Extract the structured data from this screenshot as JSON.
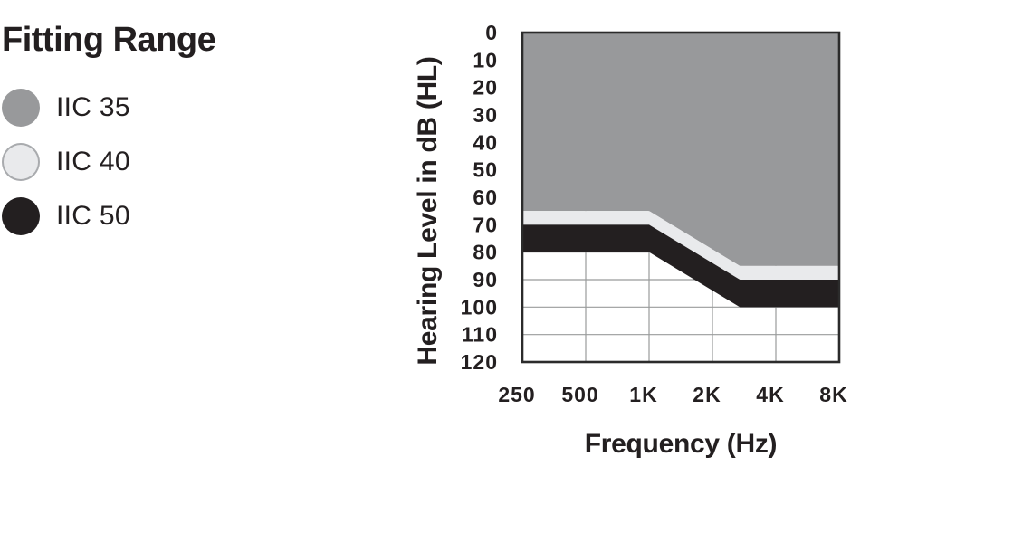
{
  "legend": {
    "title": "Fitting Range",
    "items": [
      {
        "label": "IIC 35",
        "swatch_color": "#98999b",
        "swatch_border": null
      },
      {
        "label": "IIC 40",
        "swatch_color": "#e9eaec",
        "swatch_border": "#a9abae"
      },
      {
        "label": "IIC 50",
        "swatch_color": "#231f20",
        "swatch_border": null
      }
    ]
  },
  "chart_data": {
    "type": "area",
    "title": "Fitting Range",
    "xlabel": "Frequency (Hz)",
    "ylabel": "Hearing Level in dB (HL)",
    "x_scale": "log2",
    "x_range_hz": [
      250,
      8000
    ],
    "x_ticks": [
      {
        "hz": 250,
        "label": "250"
      },
      {
        "hz": 500,
        "label": "500"
      },
      {
        "hz": 1000,
        "label": "1K"
      },
      {
        "hz": 2000,
        "label": "2K"
      },
      {
        "hz": 4000,
        "label": "4K"
      },
      {
        "hz": 8000,
        "label": "8K"
      }
    ],
    "ylim": [
      0,
      120
    ],
    "y_axis_inverted": true,
    "y_tick_step": 10,
    "y_ticks": [
      0,
      10,
      20,
      30,
      40,
      50,
      60,
      70,
      80,
      90,
      100,
      110,
      120
    ],
    "grid": {
      "x_lines_hz": [
        500,
        1000,
        2000,
        4000
      ],
      "y_lines_db": [
        10,
        20,
        30,
        40,
        50,
        60,
        70,
        80,
        90,
        100,
        110
      ],
      "color": "#999b9b",
      "visible_only_outside_bands": true
    },
    "plot_border_color": "#2b2b2b",
    "background": "#ffffff",
    "bands": [
      {
        "name": "IIC 35",
        "color": "#98999b",
        "upper_db": [
          [
            250,
            0
          ],
          [
            8000,
            0
          ]
        ],
        "lower_db": [
          [
            250,
            65
          ],
          [
            1000,
            65
          ],
          [
            2700,
            85
          ],
          [
            8000,
            85
          ]
        ]
      },
      {
        "name": "IIC 40",
        "color": "#e9eaec",
        "upper_db": [
          [
            250,
            65
          ],
          [
            1000,
            65
          ],
          [
            2700,
            85
          ],
          [
            8000,
            85
          ]
        ],
        "lower_db": [
          [
            250,
            70
          ],
          [
            1000,
            70
          ],
          [
            2700,
            90
          ],
          [
            8000,
            90
          ]
        ]
      },
      {
        "name": "IIC 50",
        "color": "#231f20",
        "upper_db": [
          [
            250,
            70
          ],
          [
            1000,
            70
          ],
          [
            2700,
            90
          ],
          [
            8000,
            90
          ]
        ],
        "lower_db": [
          [
            250,
            80
          ],
          [
            1000,
            80
          ],
          [
            2700,
            100
          ],
          [
            8000,
            100
          ]
        ]
      }
    ]
  }
}
